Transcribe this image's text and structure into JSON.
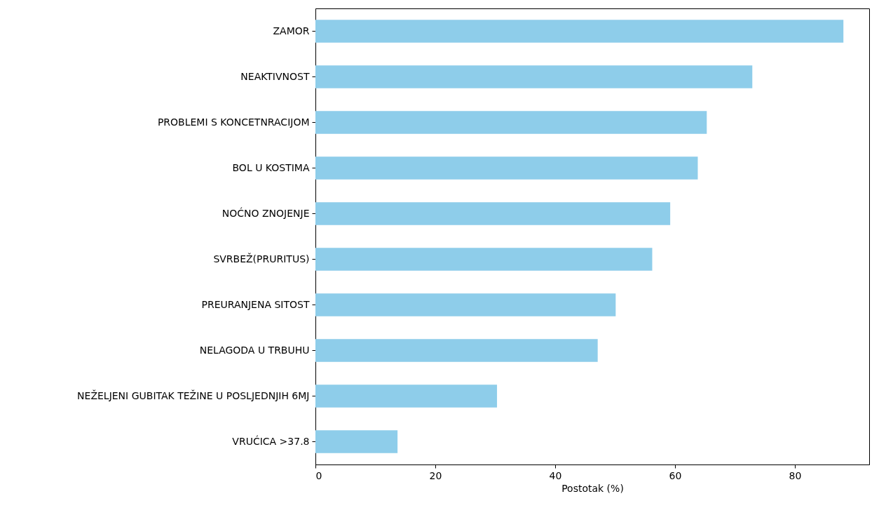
{
  "chart_data": {
    "type": "bar",
    "orientation": "horizontal",
    "xlabel": "Postotak (%)",
    "categories": [
      "ZAMOR",
      "NEAKTIVNOST",
      "PROBLEMI S KONCETNRACIJOM",
      "BOL U KOSTIMA",
      "NOĆNO ZNOJENJE",
      "SVRBEŽ(PRURITUS)",
      "PREURANJENA SITOST",
      "NELAGODA U TRBUHU",
      "NEŽELJENI GUBITAK TEŽINE U POSLJEDNJIH 6MJ",
      "VRUĆICA >37.8"
    ],
    "values": [
      88.1,
      72.9,
      65.3,
      63.8,
      59.2,
      56.2,
      50.1,
      47.1,
      30.3,
      13.7
    ],
    "color": "#8ecdea",
    "xlim": [
      0,
      92.4
    ],
    "xticks": [
      0,
      20,
      40,
      60,
      80
    ],
    "grid": false
  }
}
